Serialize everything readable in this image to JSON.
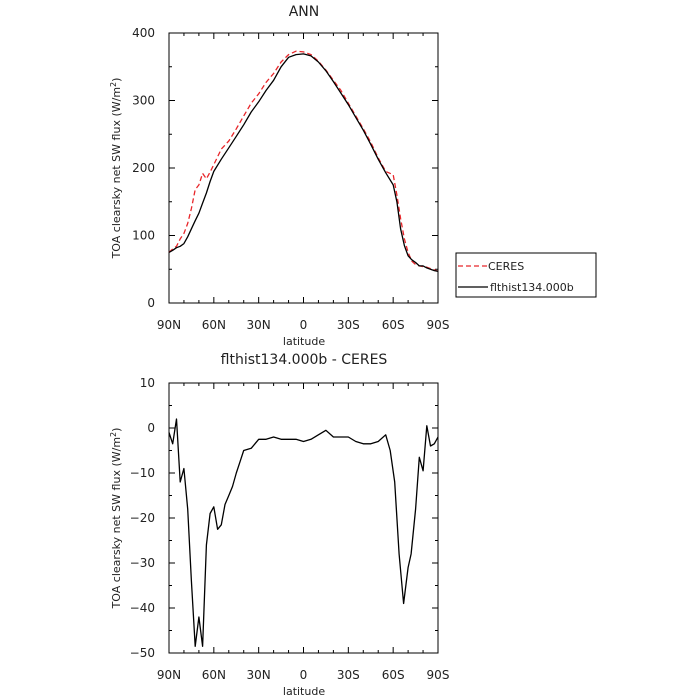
{
  "chart_data": [
    {
      "type": "line",
      "title": "ANN",
      "xlabel": "latitude",
      "ylabel": "TOA clearsky net SW flux (W/m",
      "ylabel_sup": "2",
      "ylabel_end": ")",
      "xlim": [
        90,
        -90
      ],
      "ylim": [
        0,
        400
      ],
      "xticks": [
        90,
        60,
        30,
        0,
        -30,
        -60,
        -90
      ],
      "xtick_labels": [
        "90N",
        "60N",
        "30N",
        "0",
        "30S",
        "60S",
        "90S"
      ],
      "yticks": [
        0,
        100,
        200,
        300,
        400
      ],
      "ytick_labels": [
        "0",
        "100",
        "200",
        "300",
        "400"
      ],
      "legend_position": "right",
      "series": [
        {
          "name": "CERES",
          "color": "#e8262a",
          "dash": "dashed",
          "x": [
            90,
            87.5,
            85,
            82.5,
            80,
            77.5,
            75,
            72.5,
            70,
            67.5,
            65,
            62.5,
            60,
            55,
            50,
            45,
            40,
            35,
            30,
            25,
            20,
            15,
            10,
            5,
            0,
            -5,
            -10,
            -15,
            -20,
            -25,
            -30,
            -35,
            -40,
            -45,
            -50,
            -55,
            -60,
            -62.5,
            -65,
            -67.5,
            -70,
            -72.5,
            -75,
            -77.5,
            -80,
            -82.5,
            -85,
            -87.5,
            -90
          ],
          "y": [
            75,
            80,
            84,
            95,
            103,
            118,
            140,
            168,
            175,
            192,
            184,
            194,
            205,
            228,
            240,
            258,
            277,
            296,
            310,
            327,
            340,
            357,
            368,
            373,
            372,
            368,
            358,
            345,
            330,
            315,
            296,
            277,
            258,
            238,
            215,
            195,
            190,
            160,
            125,
            95,
            75,
            62,
            57,
            55,
            54,
            53,
            51,
            49,
            47
          ]
        },
        {
          "name": "flthist134.000b",
          "color": "#000000",
          "dash": "solid",
          "x": [
            90,
            87.5,
            85,
            82.5,
            80,
            77.5,
            75,
            72.5,
            70,
            67.5,
            65,
            62.5,
            60,
            55,
            50,
            45,
            40,
            35,
            30,
            25,
            20,
            15,
            10,
            5,
            0,
            -5,
            -10,
            -15,
            -20,
            -25,
            -30,
            -35,
            -40,
            -45,
            -50,
            -55,
            -60,
            -62.5,
            -65,
            -67.5,
            -70,
            -72.5,
            -75,
            -77.5,
            -80,
            -82.5,
            -85,
            -87.5,
            -90
          ],
          "y": [
            75,
            78,
            82,
            84,
            88,
            98,
            110,
            122,
            133,
            148,
            163,
            180,
            195,
            213,
            230,
            247,
            264,
            283,
            298,
            315,
            330,
            350,
            364,
            368,
            369,
            366,
            357,
            344,
            328,
            311,
            294,
            275,
            256,
            235,
            213,
            193,
            175,
            150,
            110,
            85,
            70,
            64,
            60,
            55,
            55,
            52,
            50,
            48,
            47
          ]
        }
      ]
    },
    {
      "type": "line",
      "title": "flthist134.000b - CERES",
      "xlabel": "latitude",
      "ylabel": "TOA clearsky net SW flux (W/m",
      "ylabel_sup": "2",
      "ylabel_end": ")",
      "xlim": [
        90,
        -90
      ],
      "ylim": [
        -50,
        10
      ],
      "xticks": [
        90,
        60,
        30,
        0,
        -30,
        -60,
        -90
      ],
      "xtick_labels": [
        "90N",
        "60N",
        "30N",
        "0",
        "30S",
        "60S",
        "90S"
      ],
      "yticks": [
        -50,
        -40,
        -30,
        -20,
        -10,
        0,
        10
      ],
      "ytick_labels": [
        "−50",
        "−40",
        "−30",
        "−20",
        "−10",
        "0",
        "10"
      ],
      "series": [
        {
          "name": "",
          "color": "#000000",
          "dash": "solid",
          "x": [
            90,
            87.5,
            85,
            82.5,
            80,
            77.5,
            75,
            72.5,
            70,
            67.5,
            65,
            62.5,
            60,
            57.5,
            55,
            52.5,
            50,
            47.5,
            45,
            42.5,
            40,
            35,
            30,
            25,
            20,
            15,
            10,
            5,
            0,
            -5,
            -10,
            -15,
            -20,
            -25,
            -30,
            -35,
            -40,
            -45,
            -50,
            -55,
            -58,
            -61,
            -64,
            -67,
            -70,
            -72,
            -75,
            -77.5,
            -80,
            -82.5,
            -85,
            -87.5,
            -90
          ],
          "y": [
            -1,
            -3.5,
            2,
            -12,
            -9,
            -18,
            -34,
            -48.5,
            -42,
            -48.5,
            -26,
            -19,
            -17.5,
            -22.5,
            -21.5,
            -17,
            -15,
            -13,
            -10,
            -7.5,
            -5,
            -4.5,
            -2.5,
            -2.5,
            -2,
            -2.5,
            -2.5,
            -2.5,
            -3,
            -2.5,
            -1.5,
            -0.5,
            -2,
            -2,
            -2,
            -3,
            -3.5,
            -3.5,
            -3,
            -1.5,
            -5,
            -12,
            -28,
            -39,
            -31,
            -28,
            -18,
            -6.5,
            -9.5,
            0.5,
            -4,
            -3.5,
            -2
          ]
        }
      ]
    }
  ]
}
